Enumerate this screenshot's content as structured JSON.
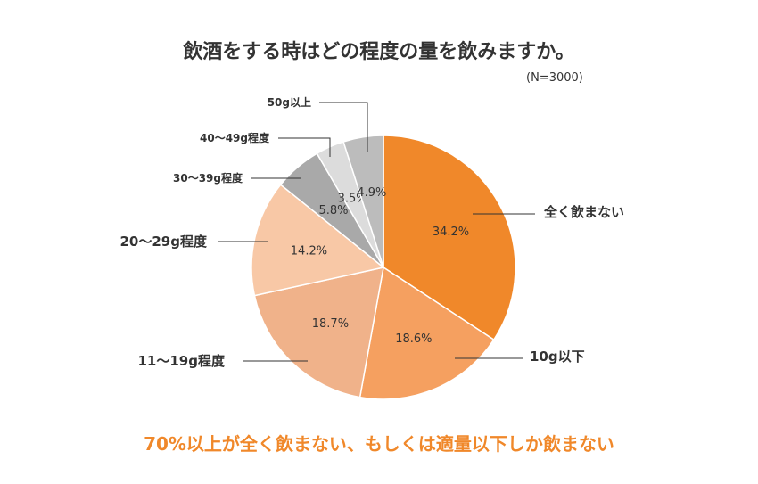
{
  "chart_data": {
    "type": "pie",
    "title": "飲酒をする時はどの程度の量を飲みますか。",
    "note": "(N=3000)",
    "slices": [
      {
        "label": "全く飲まない",
        "value": 34.2,
        "value_label": "34.2%",
        "color": "#f0882a"
      },
      {
        "label": "10g以下",
        "value": 18.6,
        "value_label": "18.6%",
        "color": "#f5a060"
      },
      {
        "label": "11〜19g程度",
        "value": 18.7,
        "value_label": "18.7%",
        "color": "#f0b28a"
      },
      {
        "label": "20〜29g程度",
        "value": 14.2,
        "value_label": "14.2%",
        "color": "#f8c8a6"
      },
      {
        "label": "30〜39g程度",
        "value": 5.8,
        "value_label": "5.8%",
        "color": "#a9a9a9"
      },
      {
        "label": "40〜49g程度",
        "value": 3.5,
        "value_label": "3.5%",
        "color": "#dcdcdc"
      },
      {
        "label": "50g以上",
        "value": 4.9,
        "value_label": "4.9%",
        "color": "#bcbcbc"
      }
    ],
    "footer": "70%以上が全く飲まない、もしくは適量以下しか飲まない"
  }
}
